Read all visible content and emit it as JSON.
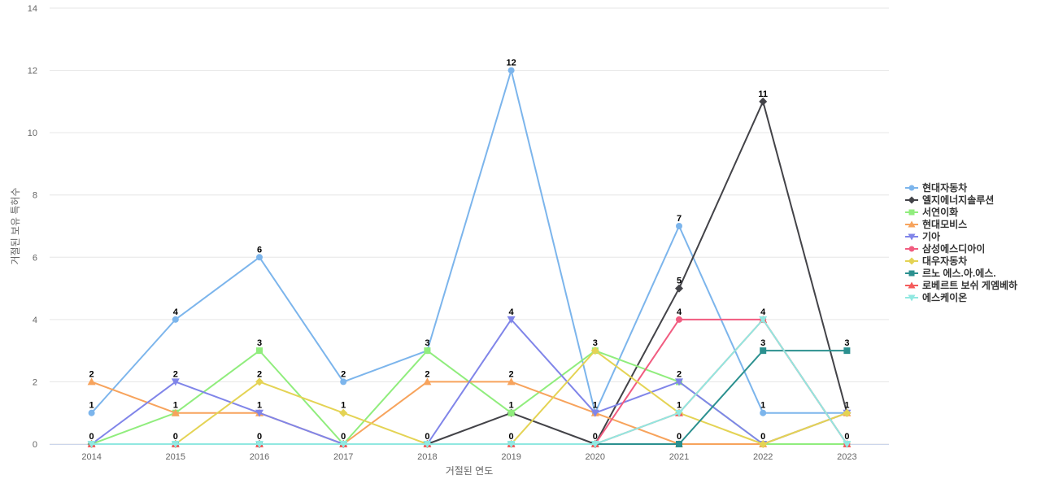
{
  "chart_data": {
    "type": "line",
    "title": "",
    "xlabel": "거절된 연도",
    "ylabel": "거절된 보유 특허수",
    "categories": [
      "2014",
      "2015",
      "2016",
      "2017",
      "2018",
      "2019",
      "2020",
      "2021",
      "2022",
      "2023"
    ],
    "ylim": [
      0,
      14
    ],
    "yticks": [
      0,
      2,
      4,
      6,
      8,
      10,
      12,
      14
    ],
    "grid": true,
    "legend_position": "right",
    "series": [
      {
        "name": "현대자동차",
        "color": "#7cb5ec",
        "marker": "circle",
        "values": [
          1,
          4,
          6,
          2,
          3,
          12,
          1,
          7,
          1,
          1
        ]
      },
      {
        "name": "엘지에너지솔루션",
        "color": "#434348",
        "marker": "diamond",
        "values": [
          0,
          0,
          0,
          0,
          0,
          1,
          0,
          5,
          11,
          1
        ]
      },
      {
        "name": "서연이화",
        "color": "#90ed7d",
        "marker": "square",
        "values": [
          0,
          1,
          3,
          0,
          3,
          1,
          3,
          2,
          0,
          0
        ]
      },
      {
        "name": "현대모비스",
        "color": "#f7a35c",
        "marker": "triangle",
        "values": [
          2,
          1,
          1,
          0,
          2,
          2,
          1,
          0,
          0,
          1
        ]
      },
      {
        "name": "기아",
        "color": "#8085e9",
        "marker": "triangle-down",
        "values": [
          0,
          2,
          1,
          0,
          0,
          4,
          1,
          2,
          0,
          1
        ]
      },
      {
        "name": "삼성에스디아이",
        "color": "#f15c80",
        "marker": "circle",
        "values": [
          0,
          0,
          0,
          0,
          0,
          0,
          0,
          4,
          4,
          0
        ]
      },
      {
        "name": "대우자동차",
        "color": "#e4d354",
        "marker": "diamond",
        "values": [
          0,
          0,
          2,
          1,
          0,
          0,
          3,
          1,
          0,
          1
        ]
      },
      {
        "name": "르노 에스.아.에스.",
        "color": "#2b908f",
        "marker": "square",
        "values": [
          0,
          0,
          0,
          0,
          0,
          0,
          0,
          0,
          3,
          3
        ]
      },
      {
        "name": "로베르트 보쉬 게엠베하",
        "color": "#f45b5b",
        "marker": "triangle",
        "values": [
          0,
          0,
          0,
          0,
          0,
          0,
          0,
          1,
          4,
          0
        ]
      },
      {
        "name": "에스케이온",
        "color": "#91e8e1",
        "marker": "triangle-down",
        "values": [
          0,
          0,
          0,
          0,
          0,
          0,
          0,
          1,
          4,
          0
        ]
      }
    ],
    "data_labels": [
      {
        "category": "2014",
        "labels": [
          2,
          1,
          0
        ]
      },
      {
        "category": "2015",
        "labels": [
          4,
          2,
          1,
          0
        ]
      },
      {
        "category": "2016",
        "labels": [
          6,
          3,
          2,
          1,
          0
        ]
      },
      {
        "category": "2017",
        "labels": [
          2,
          1,
          0
        ]
      },
      {
        "category": "2018",
        "labels": [
          3,
          2,
          0
        ]
      },
      {
        "category": "2019",
        "labels": [
          12,
          4,
          2,
          1,
          0
        ]
      },
      {
        "category": "2020",
        "labels": [
          3,
          1,
          0
        ]
      },
      {
        "category": "2021",
        "labels": [
          7,
          5,
          4,
          2,
          1,
          0
        ]
      },
      {
        "category": "2022",
        "labels": [
          11,
          4,
          3,
          1,
          0
        ]
      },
      {
        "category": "2023",
        "labels": [
          3,
          1,
          0
        ]
      }
    ]
  }
}
